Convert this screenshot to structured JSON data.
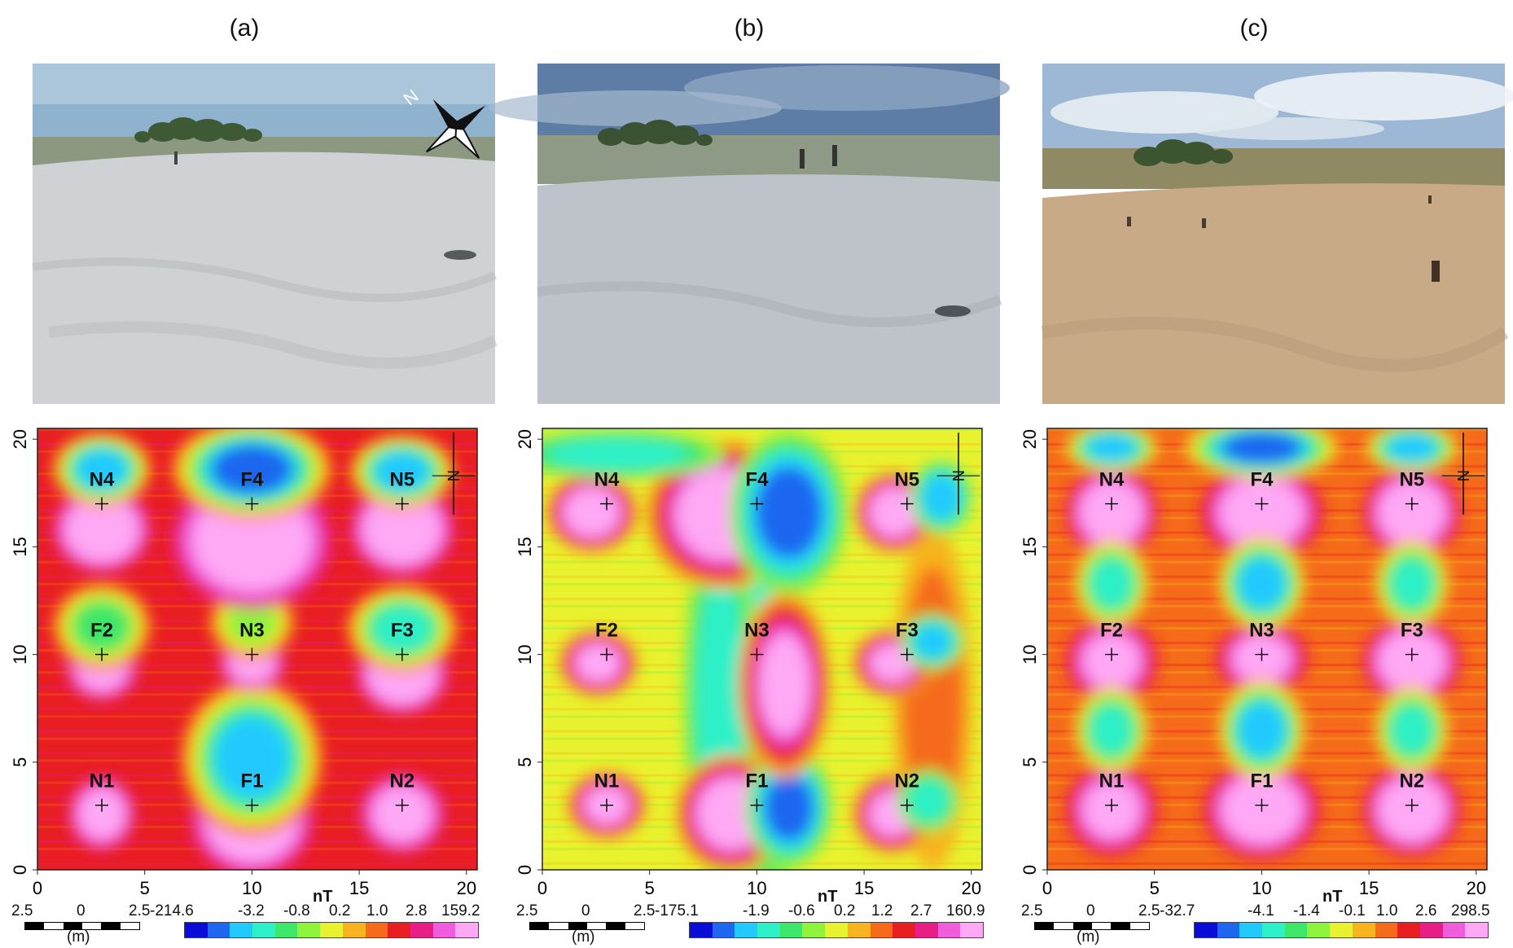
{
  "colors": {
    "ramp": [
      "#0a0cd8",
      "#1f66f0",
      "#22c9ff",
      "#2ef0c8",
      "#3ee66a",
      "#8ff23c",
      "#e9f22e",
      "#f7b41f",
      "#f56b1a",
      "#e81e22",
      "#e81e86",
      "#f05cdc",
      "#ffa8f5"
    ],
    "gridline": "#000000",
    "sand_a": "#cfd1d4",
    "sky_a": "#8fb2cf",
    "sand_b": "#bdc3c8",
    "sky_b": "#5d7ca6",
    "sand_c": "#c8aa86",
    "sky_c": "#9cb8d5"
  },
  "panels": [
    {
      "letter": "(a)",
      "photo": {
        "north_label": "N",
        "has_compass": true
      },
      "colorbar": {
        "unit": "nT",
        "ticks": [
          "-214.6",
          "-3.2",
          "-0.8",
          "0.2",
          "1.0",
          "2.8",
          "159.2"
        ]
      },
      "scale": {
        "left": "2.5",
        "mid": "0",
        "right": "2.5",
        "unit": "(m)"
      }
    },
    {
      "letter": "(b)",
      "photo": {
        "north_label": "",
        "has_compass": false
      },
      "colorbar": {
        "unit": "nT",
        "ticks": [
          "-175.1",
          "-1.9",
          "-0.6",
          "0.2",
          "1.2",
          "2.7",
          "160.9"
        ]
      },
      "scale": {
        "left": "2.5",
        "mid": "0",
        "right": "2.5",
        "unit": "(m)"
      }
    },
    {
      "letter": "(c)",
      "photo": {
        "north_label": "",
        "has_compass": false
      },
      "colorbar": {
        "unit": "nT",
        "ticks": [
          "-32.7",
          "-4.1",
          "-1.4",
          "-0.1",
          "1.0",
          "2.6",
          "298.5"
        ]
      },
      "scale": {
        "left": "2.5",
        "mid": "0",
        "right": "2.5",
        "unit": "(m)"
      }
    }
  ],
  "chart_data": [
    {
      "type": "heatmap",
      "title": "(a)",
      "xlim": [
        0,
        20.5
      ],
      "ylim": [
        0,
        20.5
      ],
      "xticks": [
        "0",
        "5",
        "10",
        "15",
        "20"
      ],
      "yticks": [
        "0",
        "5",
        "10",
        "15",
        "20"
      ],
      "north_label": "N",
      "points": [
        {
          "label": "N1",
          "x": 3,
          "y": 3
        },
        {
          "label": "F1",
          "x": 10,
          "y": 3
        },
        {
          "label": "N2",
          "x": 17,
          "y": 3
        },
        {
          "label": "F2",
          "x": 3,
          "y": 10
        },
        {
          "label": "N3",
          "x": 10,
          "y": 10
        },
        {
          "label": "F3",
          "x": 17,
          "y": 10
        },
        {
          "label": "N4",
          "x": 3,
          "y": 17
        },
        {
          "label": "F4",
          "x": 10,
          "y": 17
        },
        {
          "label": "N5",
          "x": 17,
          "y": 17
        }
      ],
      "background_level": 8.5,
      "anomalies": [
        {
          "x": 3,
          "y": 2.6,
          "rx": 1.1,
          "ry": 1.2,
          "level": 11.5
        },
        {
          "x": 10,
          "y": 2.3,
          "rx": 2.0,
          "ry": 1.8,
          "level": 12.5
        },
        {
          "x": 10,
          "y": 5.2,
          "rx": 2.3,
          "ry": 2.5,
          "level": 1.5
        },
        {
          "x": 17,
          "y": 2.6,
          "rx": 1.4,
          "ry": 1.3,
          "level": 11.5
        },
        {
          "x": 3,
          "y": 9.4,
          "rx": 1.2,
          "ry": 1.1,
          "level": 11.5
        },
        {
          "x": 10,
          "y": 9.6,
          "rx": 1.1,
          "ry": 0.9,
          "level": 11.0
        },
        {
          "x": 17,
          "y": 9.1,
          "rx": 1.5,
          "ry": 1.3,
          "level": 12.0
        },
        {
          "x": 3,
          "y": 11.3,
          "rx": 1.6,
          "ry": 1.4,
          "level": 4.0
        },
        {
          "x": 10,
          "y": 11.5,
          "rx": 1.4,
          "ry": 1.2,
          "level": 5.0
        },
        {
          "x": 17,
          "y": 11.2,
          "rx": 1.8,
          "ry": 1.4,
          "level": 3.0
        },
        {
          "x": 3,
          "y": 15.8,
          "rx": 1.6,
          "ry": 1.4,
          "level": 12.0
        },
        {
          "x": 10,
          "y": 15.3,
          "rx": 2.6,
          "ry": 2.2,
          "level": 12.5
        },
        {
          "x": 17,
          "y": 15.8,
          "rx": 1.7,
          "ry": 1.5,
          "level": 12.0
        },
        {
          "x": 3,
          "y": 18.6,
          "rx": 1.6,
          "ry": 1.2,
          "level": 1.5
        },
        {
          "x": 10,
          "y": 18.6,
          "rx": 2.6,
          "ry": 1.6,
          "level": 0.3
        },
        {
          "x": 17,
          "y": 18.5,
          "rx": 1.7,
          "ry": 1.2,
          "level": 2.0
        }
      ]
    },
    {
      "type": "heatmap",
      "title": "(b)",
      "xlim": [
        0,
        20.5
      ],
      "ylim": [
        0,
        20.5
      ],
      "xticks": [
        "0",
        "5",
        "10",
        "15",
        "20"
      ],
      "yticks": [
        "0",
        "5",
        "10",
        "15",
        "20"
      ],
      "north_label": "N",
      "points": [
        {
          "label": "N1",
          "x": 3,
          "y": 3
        },
        {
          "label": "F1",
          "x": 10,
          "y": 3
        },
        {
          "label": "N2",
          "x": 17,
          "y": 3
        },
        {
          "label": "F2",
          "x": 3,
          "y": 10
        },
        {
          "label": "N3",
          "x": 10,
          "y": 10
        },
        {
          "label": "F3",
          "x": 17,
          "y": 10
        },
        {
          "label": "N4",
          "x": 3,
          "y": 17
        },
        {
          "label": "F4",
          "x": 10,
          "y": 17
        },
        {
          "label": "N5",
          "x": 17,
          "y": 17
        }
      ],
      "background_level": 5.5,
      "anomalies": [
        {
          "x": 10.3,
          "y": 8.0,
          "rx": 1.5,
          "ry": 7.0,
          "level": 2.5
        },
        {
          "x": 8.3,
          "y": 8.0,
          "rx": 1.2,
          "ry": 6.0,
          "level": 3.0
        },
        {
          "x": 18.2,
          "y": 8.0,
          "rx": 1.3,
          "ry": 5.5,
          "level": 7.5
        },
        {
          "x": 3,
          "y": 3.0,
          "rx": 1.3,
          "ry": 1.1,
          "level": 11.5
        },
        {
          "x": 8.8,
          "y": 2.6,
          "rx": 1.8,
          "ry": 1.9,
          "level": 12.5
        },
        {
          "x": 11.5,
          "y": 2.9,
          "rx": 1.4,
          "ry": 1.9,
          "level": 0.3
        },
        {
          "x": 16.3,
          "y": 2.6,
          "rx": 1.3,
          "ry": 1.3,
          "level": 11.5
        },
        {
          "x": 18.0,
          "y": 3.2,
          "rx": 1.0,
          "ry": 1.0,
          "level": 2.5
        },
        {
          "x": 2.6,
          "y": 9.6,
          "rx": 1.3,
          "ry": 1.1,
          "level": 11.5
        },
        {
          "x": 11.3,
          "y": 8.6,
          "rx": 1.5,
          "ry": 3.0,
          "level": 11.0
        },
        {
          "x": 16.3,
          "y": 9.6,
          "rx": 1.3,
          "ry": 1.1,
          "level": 11.5
        },
        {
          "x": 18.2,
          "y": 10.6,
          "rx": 1.0,
          "ry": 0.9,
          "level": 2.0
        },
        {
          "x": 2.3,
          "y": 16.6,
          "rx": 1.5,
          "ry": 1.3,
          "level": 12.0
        },
        {
          "x": 8.4,
          "y": 16.5,
          "rx": 2.5,
          "ry": 2.4,
          "level": 12.5
        },
        {
          "x": 11.5,
          "y": 16.6,
          "rx": 1.9,
          "ry": 2.6,
          "level": 0.2
        },
        {
          "x": 16.4,
          "y": 16.6,
          "rx": 1.3,
          "ry": 1.3,
          "level": 12.0
        },
        {
          "x": 18.6,
          "y": 17.3,
          "rx": 1.0,
          "ry": 1.2,
          "level": 2.0
        },
        {
          "x": 3.5,
          "y": 19.3,
          "rx": 3.5,
          "ry": 0.8,
          "level": 3.0
        }
      ]
    },
    {
      "type": "heatmap",
      "title": "(c)",
      "xlim": [
        0,
        20.5
      ],
      "ylim": [
        0,
        20.5
      ],
      "xticks": [
        "0",
        "5",
        "10",
        "15",
        "20"
      ],
      "yticks": [
        "0",
        "5",
        "10",
        "15",
        "20"
      ],
      "north_label": "N",
      "points": [
        {
          "label": "N1",
          "x": 3,
          "y": 3
        },
        {
          "label": "F1",
          "x": 10,
          "y": 3
        },
        {
          "label": "N2",
          "x": 17,
          "y": 3
        },
        {
          "label": "F2",
          "x": 3,
          "y": 10
        },
        {
          "label": "N3",
          "x": 10,
          "y": 10
        },
        {
          "label": "F3",
          "x": 17,
          "y": 10
        },
        {
          "label": "N4",
          "x": 3,
          "y": 17
        },
        {
          "label": "F4",
          "x": 10,
          "y": 17
        },
        {
          "label": "N5",
          "x": 17,
          "y": 17
        }
      ],
      "background_level": 7.5,
      "anomalies": [
        {
          "x": 3,
          "y": 2.8,
          "rx": 1.5,
          "ry": 1.5,
          "level": 11.5
        },
        {
          "x": 10,
          "y": 2.8,
          "rx": 1.9,
          "ry": 1.6,
          "level": 12.0
        },
        {
          "x": 17,
          "y": 2.8,
          "rx": 1.6,
          "ry": 1.5,
          "level": 12.0
        },
        {
          "x": 3,
          "y": 9.7,
          "rx": 1.5,
          "ry": 1.4,
          "level": 11.5
        },
        {
          "x": 10,
          "y": 9.8,
          "rx": 1.5,
          "ry": 1.2,
          "level": 11.5
        },
        {
          "x": 17,
          "y": 9.7,
          "rx": 1.6,
          "ry": 1.4,
          "level": 12.0
        },
        {
          "x": 3,
          "y": 16.6,
          "rx": 1.5,
          "ry": 1.5,
          "level": 12.0
        },
        {
          "x": 10,
          "y": 16.6,
          "rx": 2.0,
          "ry": 1.6,
          "level": 12.0
        },
        {
          "x": 17,
          "y": 16.6,
          "rx": 1.6,
          "ry": 1.5,
          "level": 12.0
        },
        {
          "x": 3,
          "y": 6.5,
          "rx": 1.2,
          "ry": 1.4,
          "level": 2.5
        },
        {
          "x": 10,
          "y": 6.5,
          "rx": 1.4,
          "ry": 1.6,
          "level": 1.5
        },
        {
          "x": 17,
          "y": 6.5,
          "rx": 1.2,
          "ry": 1.4,
          "level": 2.5
        },
        {
          "x": 3,
          "y": 13.3,
          "rx": 1.2,
          "ry": 1.4,
          "level": 2.5
        },
        {
          "x": 10,
          "y": 13.3,
          "rx": 1.4,
          "ry": 1.5,
          "level": 2.0
        },
        {
          "x": 17,
          "y": 13.3,
          "rx": 1.2,
          "ry": 1.4,
          "level": 2.5
        },
        {
          "x": 10,
          "y": 19.6,
          "rx": 2.5,
          "ry": 1.0,
          "level": 0.2
        },
        {
          "x": 3,
          "y": 19.6,
          "rx": 1.5,
          "ry": 0.8,
          "level": 1.5
        },
        {
          "x": 17,
          "y": 19.6,
          "rx": 1.5,
          "ry": 0.8,
          "level": 2.0
        }
      ]
    }
  ]
}
